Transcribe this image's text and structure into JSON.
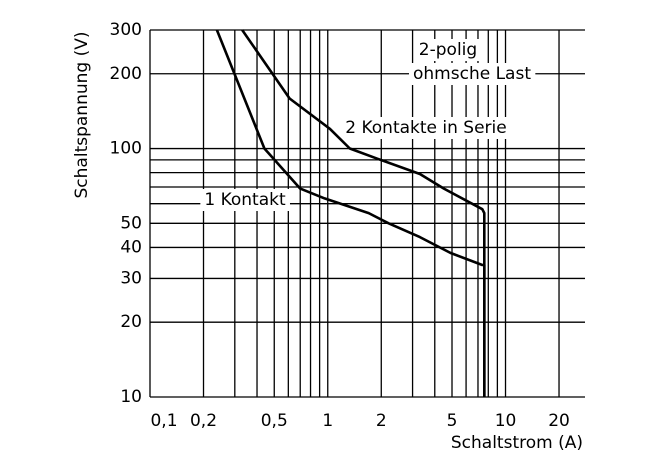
{
  "chart_data": {
    "type": "line",
    "log_x": true,
    "log_y": true,
    "grid": true,
    "x_label": "Schaltstrom (A)",
    "y_label": "Schaltspannung (V)",
    "xlim": [
      0.1,
      28
    ],
    "ylim": [
      10,
      300
    ],
    "xticks": [
      {
        "value": 0.1,
        "label": "0,1"
      },
      {
        "value": 0.2,
        "label": "0,2"
      },
      {
        "value": 0.5,
        "label": "0,5"
      },
      1,
      2,
      5,
      10,
      20
    ],
    "yticks": [
      10,
      20,
      30,
      40,
      50,
      100,
      200,
      300
    ],
    "xgrid_minor": [
      0.3,
      0.4,
      0.6,
      0.7,
      0.8,
      0.9,
      3,
      4,
      6,
      7,
      8,
      9
    ],
    "ygrid_minor": [
      60,
      70,
      80,
      90
    ],
    "annotations": [
      "2-polig",
      "ohmsche Last"
    ],
    "series": [
      {
        "name": "1 Kontakt",
        "color": "#000000",
        "x": [
          0.238,
          0.44,
          0.7,
          0.96,
          1.7,
          2.2,
          3.3,
          4.9,
          7.4,
          7.6,
          7.6
        ],
        "values": [
          300,
          100,
          69,
          63,
          55,
          50,
          44,
          38,
          34,
          34,
          10
        ]
      },
      {
        "name": "2 Kontakte in Serie",
        "color": "#000000",
        "x": [
          0.33,
          0.61,
          1.03,
          1.33,
          1.9,
          3.3,
          4.5,
          7.4,
          7.6,
          7.6
        ],
        "values": [
          300,
          159,
          120,
          100,
          91,
          79,
          69,
          57,
          55,
          10
        ]
      }
    ]
  }
}
